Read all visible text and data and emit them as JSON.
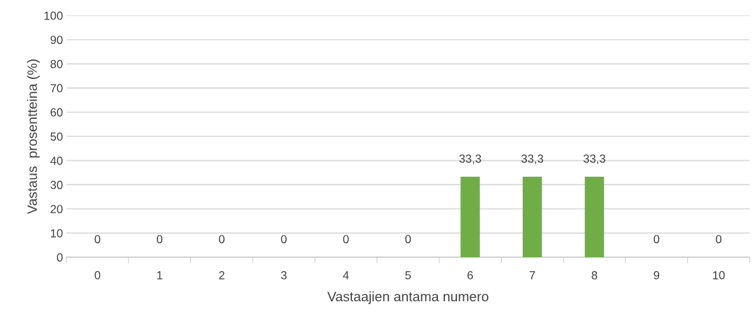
{
  "chart_data": {
    "type": "bar",
    "xlabel": "Vastaajien antama numero",
    "ylabel": "Vastaus  prosentteina (%)",
    "categories": [
      "0",
      "1",
      "2",
      "3",
      "4",
      "5",
      "6",
      "7",
      "8",
      "9",
      "10"
    ],
    "series": [
      {
        "color": "#70ad47",
        "values": [
          0,
          0,
          0,
          0,
          0,
          0,
          33.3,
          33.3,
          33.3,
          0,
          0
        ],
        "value_labels": [
          "0",
          "0",
          "0",
          "0",
          "0",
          "0",
          "33,3",
          "33,3",
          "33,3",
          "0",
          "0"
        ]
      }
    ],
    "ylim": [
      0,
      100
    ],
    "yticks": [
      0,
      10,
      20,
      30,
      40,
      50,
      60,
      70,
      80,
      90,
      100
    ],
    "grid": "y",
    "legend": false
  }
}
